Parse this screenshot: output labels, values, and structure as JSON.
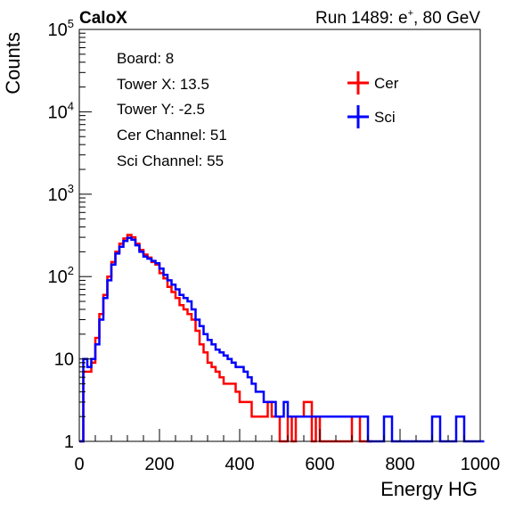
{
  "header": {
    "left": "CaloX",
    "right_prefix": "Run 1489: e",
    "right_sup": "+",
    "right_suffix": ", 80 GeV"
  },
  "info_box": {
    "lines": [
      "Board: 8",
      "Tower X: 13.5",
      "Tower Y: -2.5",
      "Cer Channel: 51",
      "Sci Channel: 55"
    ]
  },
  "chart_data": {
    "type": "line",
    "title": "",
    "xlabel": "Energy HG",
    "ylabel": "Counts",
    "xlim": [
      0,
      1000
    ],
    "ylim": [
      1,
      100000
    ],
    "log_y": true,
    "x_ticks": [
      "0",
      "200",
      "400",
      "600",
      "800",
      "1000"
    ],
    "y_ticks": [
      {
        "value": 1,
        "base": "1",
        "exp": ""
      },
      {
        "value": 10,
        "base": "10",
        "exp": ""
      },
      {
        "value": 100,
        "base": "10",
        "exp": "2"
      },
      {
        "value": 1000,
        "base": "10",
        "exp": "3"
      },
      {
        "value": 10000,
        "base": "10",
        "exp": "4"
      },
      {
        "value": 100000,
        "base": "10",
        "exp": "5"
      }
    ],
    "legend_position": "top-right",
    "series": [
      {
        "name": "Cer",
        "color": "#ff0000",
        "x": [
          0,
          10,
          20,
          30,
          40,
          50,
          60,
          70,
          80,
          90,
          100,
          110,
          120,
          130,
          140,
          150,
          160,
          170,
          180,
          190,
          200,
          210,
          220,
          230,
          240,
          250,
          260,
          270,
          280,
          290,
          300,
          310,
          320,
          330,
          340,
          350,
          360,
          370,
          380,
          390,
          400,
          410,
          420,
          430,
          440,
          450,
          460,
          470,
          480,
          490,
          500,
          510,
          520,
          530,
          540,
          550,
          560,
          570,
          580,
          590,
          600,
          620,
          640,
          660,
          680,
          700,
          720
        ],
        "y": [
          1,
          7,
          7,
          9,
          18,
          35,
          60,
          100,
          150,
          200,
          250,
          290,
          320,
          300,
          250,
          210,
          185,
          170,
          150,
          140,
          110,
          95,
          75,
          65,
          55,
          45,
          40,
          35,
          30,
          22,
          15,
          12,
          9,
          8,
          7,
          6,
          5,
          5,
          5,
          4,
          3,
          3,
          3,
          2,
          2,
          2,
          2,
          3,
          2,
          2,
          1,
          1,
          2,
          1,
          2,
          2,
          3,
          3,
          1,
          2,
          1,
          1,
          1,
          1,
          2,
          1,
          1
        ]
      },
      {
        "name": "Sci",
        "color": "#0000ff",
        "x": [
          0,
          10,
          20,
          30,
          40,
          50,
          60,
          70,
          80,
          90,
          100,
          110,
          120,
          130,
          140,
          150,
          160,
          170,
          180,
          190,
          200,
          210,
          220,
          230,
          240,
          250,
          260,
          270,
          280,
          290,
          300,
          310,
          320,
          330,
          340,
          350,
          360,
          370,
          380,
          390,
          400,
          410,
          420,
          430,
          440,
          450,
          460,
          470,
          480,
          490,
          500,
          510,
          520,
          530,
          540,
          550,
          560,
          570,
          580,
          590,
          600,
          620,
          640,
          660,
          680,
          700,
          720,
          740,
          760,
          780,
          800,
          820,
          840,
          860,
          880,
          900,
          920,
          940,
          960,
          980,
          1000
        ],
        "y": [
          1,
          10,
          8,
          10,
          15,
          30,
          55,
          90,
          140,
          190,
          230,
          270,
          295,
          280,
          240,
          200,
          175,
          165,
          155,
          145,
          125,
          105,
          90,
          80,
          70,
          60,
          55,
          50,
          40,
          30,
          25,
          20,
          17,
          15,
          13,
          12,
          11,
          10,
          9,
          8,
          8,
          7,
          6,
          5,
          4,
          4,
          3,
          3,
          3,
          2,
          2,
          3,
          2,
          2,
          2,
          2,
          2,
          2,
          2,
          2,
          2,
          2,
          2,
          2,
          2,
          2,
          1,
          1,
          2,
          1,
          1,
          1,
          1,
          1,
          2,
          1,
          1,
          2,
          1,
          1,
          1
        ]
      }
    ]
  }
}
